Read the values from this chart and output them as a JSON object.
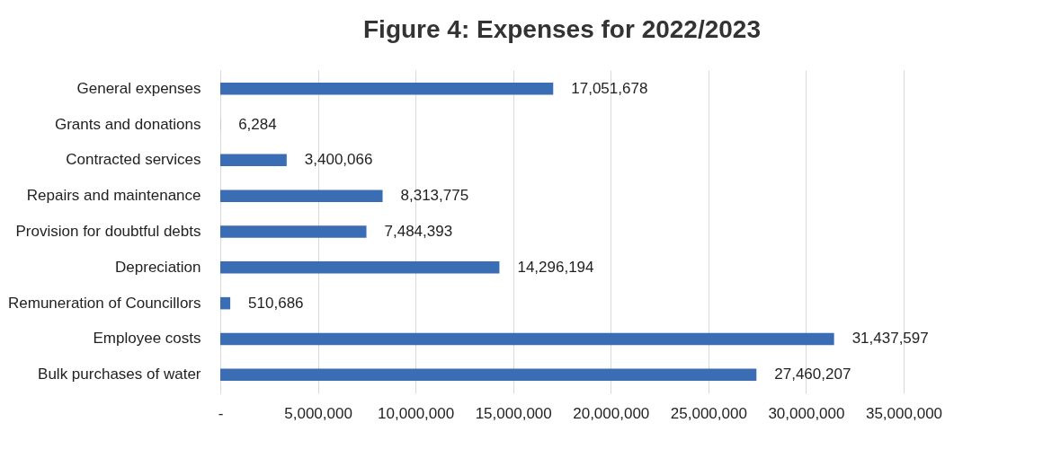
{
  "chart_data": {
    "type": "bar",
    "orientation": "horizontal",
    "title": "Figure 4: Expenses for 2022/2023",
    "categories": [
      "General expenses",
      "Grants and donations",
      "Contracted services",
      "Repairs and maintenance",
      "Provision for doubtful debts",
      "Depreciation",
      "Remuneration of Councillors",
      "Employee costs",
      "Bulk purchases of water"
    ],
    "values": [
      17051678,
      6284,
      3400066,
      8313775,
      7484393,
      14296194,
      510686,
      31437597,
      27460207
    ],
    "color": "#3a6db3",
    "xlim": [
      0,
      35000000
    ],
    "xticks": [
      {
        "value": 0,
        "label": "-"
      },
      {
        "value": 5000000,
        "label": "5,000,000"
      },
      {
        "value": 10000000,
        "label": "10,000,000"
      },
      {
        "value": 15000000,
        "label": "15,000,000"
      },
      {
        "value": 20000000,
        "label": "20,000,000"
      },
      {
        "value": 25000000,
        "label": "25,000,000"
      },
      {
        "value": 30000000,
        "label": "30,000,000"
      },
      {
        "value": 35000000,
        "label": "35,000,000"
      }
    ],
    "value_labels": [
      "17,051,678",
      "6,284",
      "3,400,066",
      "8,313,775",
      "7,484,393",
      "14,296,194",
      "510,686",
      "31,437,597",
      "27,460,207"
    ],
    "grid": "x"
  }
}
